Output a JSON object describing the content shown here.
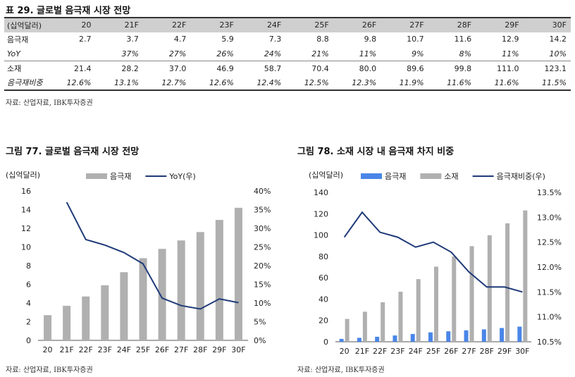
{
  "table": {
    "title": "표 29. 글로벌 음극재 시장 전망",
    "header": [
      "(십억달러)",
      "20",
      "21F",
      "22F",
      "23F",
      "24F",
      "25F",
      "26F",
      "27F",
      "28F",
      "29F",
      "30F"
    ],
    "rows": [
      [
        "음극재",
        "2.7",
        "3.7",
        "4.7",
        "5.9",
        "7.3",
        "8.8",
        "9.8",
        "10.7",
        "11.6",
        "12.9",
        "14.2"
      ],
      [
        "YoY",
        "",
        "37%",
        "27%",
        "26%",
        "24%",
        "21%",
        "11%",
        "9%",
        "8%",
        "11%",
        "10%"
      ],
      [
        "소재",
        "21.4",
        "28.2",
        "37.0",
        "46.9",
        "58.7",
        "70.4",
        "80.0",
        "89.6",
        "99.8",
        "111.0",
        "123.1"
      ],
      [
        "음극재비중",
        "12.6%",
        "13.1%",
        "12.7%",
        "12.6%",
        "12.4%",
        "12.5%",
        "12.3%",
        "11.9%",
        "11.6%",
        "11.6%",
        "11.5%"
      ]
    ],
    "source": "자료: 산업자료, IBK투자증권"
  },
  "chart_data": [
    {
      "type": "bar",
      "title": "그림 77. 글로벌 음극재 시장 전망",
      "ylabel": "(십억달러)",
      "categories": [
        "20",
        "21F",
        "22F",
        "23F",
        "24F",
        "25F",
        "26F",
        "27F",
        "28F",
        "29F",
        "30F"
      ],
      "ylim": [
        0,
        16
      ],
      "yticks": [
        "0",
        "2",
        "4",
        "6",
        "8",
        "10",
        "12",
        "14",
        "16"
      ],
      "y2lim": [
        0,
        40
      ],
      "y2ticks": [
        "0%",
        "5%",
        "10%",
        "15%",
        "20%",
        "25%",
        "30%",
        "35%",
        "40%"
      ],
      "series": [
        {
          "name": "음극재",
          "kind": "bar",
          "color": "#b0b0b0",
          "values": [
            2.7,
            3.7,
            4.7,
            5.9,
            7.3,
            8.8,
            9.8,
            10.7,
            11.6,
            12.9,
            14.2
          ]
        },
        {
          "name": "YoY(우)",
          "kind": "line",
          "axis": "right",
          "color": "#1f3a78",
          "values": [
            null,
            37,
            27,
            25.5,
            23.5,
            20.5,
            11.3,
            9.3,
            8.4,
            11.1,
            10.1
          ]
        }
      ],
      "source": "자료: 산업자료, IBK투자증권"
    },
    {
      "type": "bar",
      "title": "그림 78. 소재 시장 내 음극재 차지 비중",
      "ylabel": "(십억달러)",
      "categories": [
        "20",
        "21F",
        "22F",
        "23F",
        "24F",
        "25F",
        "26F",
        "27F",
        "28F",
        "29F",
        "30F"
      ],
      "ylim": [
        0,
        140
      ],
      "yticks": [
        "0",
        "20",
        "40",
        "60",
        "80",
        "100",
        "120",
        "140"
      ],
      "y2lim": [
        10.5,
        13.5
      ],
      "y2ticks": [
        "10.5%",
        "11.0%",
        "11.5%",
        "12.0%",
        "12.5%",
        "13.0%",
        "13.5%"
      ],
      "series": [
        {
          "name": "음극재",
          "kind": "bar",
          "color": "#4a86e8",
          "values": [
            2.7,
            3.7,
            4.7,
            5.9,
            7.3,
            8.8,
            9.8,
            10.7,
            11.6,
            12.9,
            14.2
          ]
        },
        {
          "name": "소재",
          "kind": "bar",
          "color": "#b0b0b0",
          "values": [
            21.4,
            28.2,
            37.0,
            46.9,
            58.7,
            70.4,
            80.0,
            89.6,
            99.8,
            111.0,
            123.1
          ]
        },
        {
          "name": "음극재비중(우)",
          "kind": "line",
          "axis": "right",
          "color": "#1f3a78",
          "values": [
            12.6,
            13.1,
            12.7,
            12.6,
            12.4,
            12.5,
            12.3,
            11.9,
            11.6,
            11.6,
            11.5
          ]
        }
      ],
      "source": "자료: 산업자료, IBK투자증권"
    }
  ]
}
